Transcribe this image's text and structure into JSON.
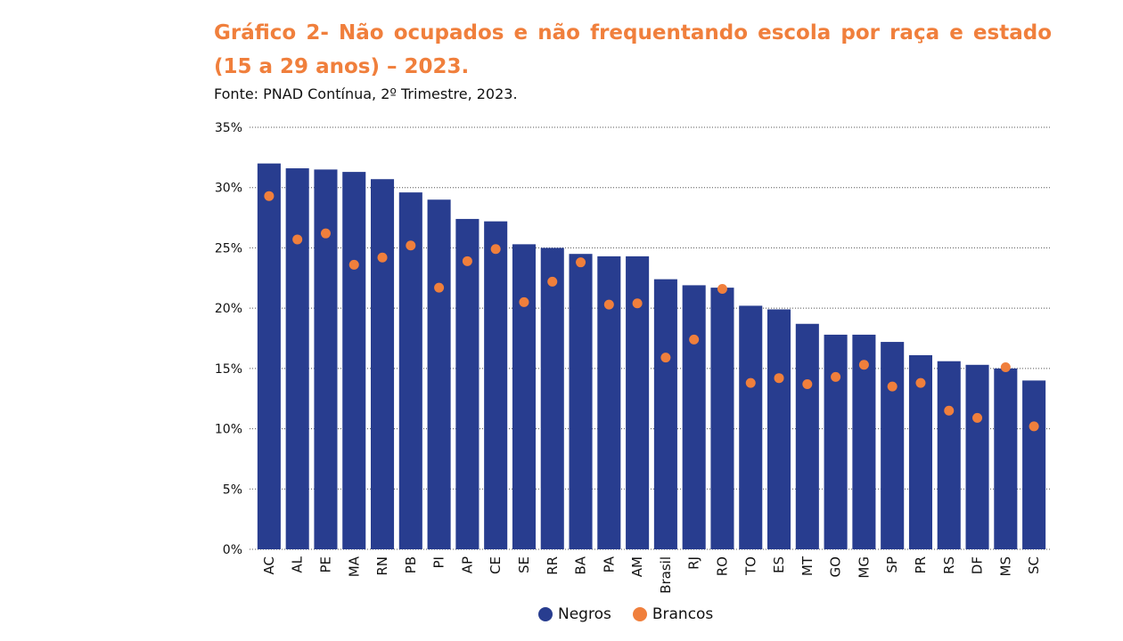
{
  "title": "Gráfico 2- Não ocupados e não frequentando escola por raça e estado (15 a 29 anos) – 2023.",
  "source": "Fonte: PNAD Contínua, 2º Trimestre, 2023.",
  "colors": {
    "negros": "#283D8F",
    "brancos": "#F07F3C",
    "title": "#F07F3C"
  },
  "legend": {
    "negros": "Negros",
    "brancos": "Brancos"
  },
  "chart_data": {
    "type": "bar",
    "categories": [
      "AC",
      "AL",
      "PE",
      "MA",
      "RN",
      "PB",
      "PI",
      "AP",
      "CE",
      "SE",
      "RR",
      "BA",
      "PA",
      "AM",
      "Brasil",
      "RJ",
      "RO",
      "TO",
      "ES",
      "MT",
      "GO",
      "MG",
      "SP",
      "PR",
      "RS",
      "DF",
      "MS",
      "SC"
    ],
    "series": [
      {
        "name": "Negros",
        "render": "bar",
        "values": [
          32.0,
          31.6,
          31.5,
          31.3,
          30.7,
          29.6,
          29.0,
          27.4,
          27.2,
          25.3,
          25.0,
          24.5,
          24.3,
          24.3,
          22.4,
          21.9,
          21.7,
          20.2,
          19.9,
          18.7,
          17.8,
          17.8,
          17.2,
          16.1,
          15.6,
          15.3,
          15.0,
          14.0
        ]
      },
      {
        "name": "Brancos",
        "render": "dot",
        "values": [
          29.3,
          25.7,
          26.2,
          23.6,
          24.2,
          25.2,
          21.7,
          23.9,
          24.9,
          20.5,
          22.2,
          23.8,
          20.3,
          20.4,
          15.9,
          17.4,
          21.6,
          13.8,
          14.2,
          13.7,
          14.3,
          15.3,
          13.5,
          13.8,
          11.5,
          10.9,
          15.1,
          10.2
        ]
      }
    ],
    "yticks": [
      "0%",
      "5%",
      "10%",
      "15%",
      "20%",
      "25%",
      "30%",
      "35%"
    ],
    "ylim": [
      0,
      35
    ],
    "grid": true,
    "legend_position": "bottom"
  }
}
